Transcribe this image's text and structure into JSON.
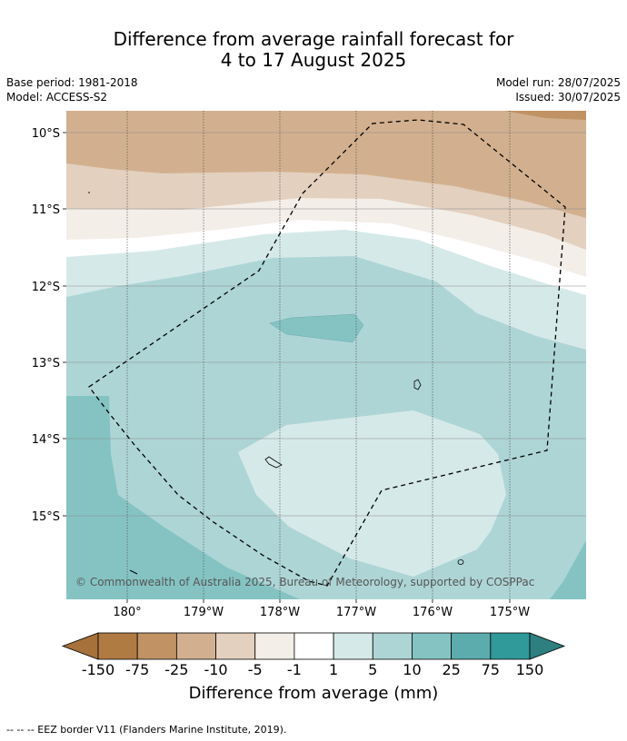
{
  "header": {
    "title_line1": "Difference from average rainfall forecast for",
    "title_line2": "4 to 17 August 2025",
    "base_period": "Base period: 1981-2018",
    "model": "Model: ACCESS-S2",
    "model_run": "Model run: 28/07/2025",
    "issued": "Issued: 30/07/2025"
  },
  "map": {
    "lat_labels": [
      "10°S",
      "11°S",
      "12°S",
      "13°S",
      "14°S",
      "15°S"
    ],
    "lon_labels": [
      "180°",
      "179°W",
      "178°W",
      "177°W",
      "176°W",
      "175°W"
    ],
    "copyright": "© Commonwealth of Australia 2025, Bureau of Meteorology, supported by COSPPac",
    "eez_border": "dashed"
  },
  "colorbar": {
    "ticks": [
      "-150",
      "-75",
      "-25",
      "-10",
      "-5",
      "-1",
      "1",
      "5",
      "10",
      "25",
      "75",
      "150"
    ],
    "colors": [
      "#a6713b",
      "#b07a43",
      "#c09264",
      "#d2b08f",
      "#e3d0bf",
      "#f3eee8",
      "#ffffff",
      "#d6e9e9",
      "#aed5d6",
      "#85c3c3",
      "#5cacae",
      "#30999a",
      "#2e7f80"
    ],
    "label": "Difference from average (mm)"
  },
  "footer": {
    "eez_note": "--  --  -- EEZ border V11 (Flanders Marine Institute, 2019)."
  }
}
